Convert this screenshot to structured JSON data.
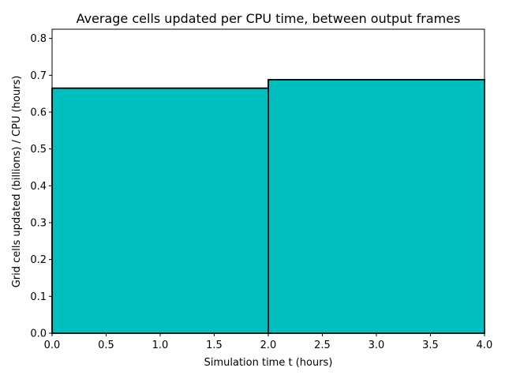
{
  "chart_data": {
    "type": "bar",
    "title": "Average cells updated per CPU time, between output frames",
    "xlabel": "Simulation time t (hours)",
    "ylabel": "Grid cells updated (billions) / CPU (hours)",
    "bins": [
      {
        "x0": 0.0,
        "x1": 2.0,
        "value": 0.665
      },
      {
        "x0": 2.0,
        "x1": 4.0,
        "value": 0.688
      }
    ],
    "xlim": [
      0.0,
      4.0
    ],
    "ylim": [
      0.0,
      0.825
    ],
    "xticks": [
      "0.0",
      "0.5",
      "1.0",
      "1.5",
      "2.0",
      "2.5",
      "3.0",
      "3.5",
      "4.0"
    ],
    "yticks": [
      "0.0",
      "0.1",
      "0.2",
      "0.3",
      "0.4",
      "0.5",
      "0.6",
      "0.7",
      "0.8"
    ],
    "grid": false,
    "bar_color": "#00bfbf",
    "edge_color": "#000000"
  }
}
